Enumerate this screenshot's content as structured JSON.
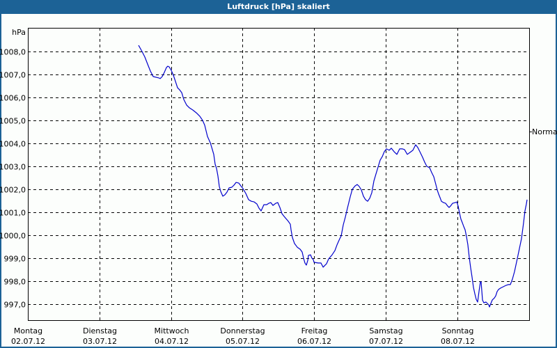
{
  "window": {
    "title": "Luftdruck [hPa] skaliert"
  },
  "chart_data": {
    "type": "line",
    "title": "Luftdruck [hPa] skaliert",
    "ylabel": "hPa",
    "xlabel": "",
    "ylim": [
      996.3,
      1009.0
    ],
    "y_ticks": [
      1008.0,
      1007.0,
      1006.0,
      1005.0,
      1004.0,
      1003.0,
      1002.0,
      1001.0,
      1000.0,
      999.0,
      998.0,
      997.0
    ],
    "y_tick_labels": [
      "1008,0",
      "1007,0",
      "1006,0",
      "1005,0",
      "1004,0",
      "1003,0",
      "1002,0",
      "1001,0",
      "1000,0",
      "999,0",
      "998,0",
      "997,0"
    ],
    "x_ticks": [
      {
        "day": "Montag",
        "date": "02.07.12"
      },
      {
        "day": "Dienstag",
        "date": "03.07.12"
      },
      {
        "day": "Mittwoch",
        "date": "04.07.12"
      },
      {
        "day": "Donnerstag",
        "date": "05.07.12"
      },
      {
        "day": "Freitag",
        "date": "06.07.12"
      },
      {
        "day": "Samstag",
        "date": "07.07.12"
      },
      {
        "day": "Sonntag",
        "date": "08.07.12"
      }
    ],
    "xlim_days": [
      0,
      7
    ],
    "grid": true,
    "reference_marker": {
      "label": "Normal",
      "value": 1004.5
    },
    "series": [
      {
        "name": "Luftdruck",
        "color": "#0000cc",
        "x_unit": "days since Montag 02.07.12 00:00",
        "points": [
          [
            1.547,
            1008.27
          ],
          [
            1.595,
            1008.0
          ],
          [
            1.634,
            1007.76
          ],
          [
            1.673,
            1007.45
          ],
          [
            1.712,
            1007.15
          ],
          [
            1.751,
            1006.91
          ],
          [
            1.829,
            1006.85
          ],
          [
            1.848,
            1006.82
          ],
          [
            1.877,
            1006.91
          ],
          [
            1.907,
            1007.09
          ],
          [
            1.936,
            1007.3
          ],
          [
            1.955,
            1007.36
          ],
          [
            1.975,
            1007.33
          ],
          [
            2.004,
            1007.18
          ],
          [
            2.033,
            1006.97
          ],
          [
            2.062,
            1006.7
          ],
          [
            2.091,
            1006.42
          ],
          [
            2.121,
            1006.33
          ],
          [
            2.15,
            1006.21
          ],
          [
            2.179,
            1005.91
          ],
          [
            2.218,
            1005.67
          ],
          [
            2.257,
            1005.55
          ],
          [
            2.305,
            1005.45
          ],
          [
            2.354,
            1005.33
          ],
          [
            2.403,
            1005.18
          ],
          [
            2.442,
            1005.0
          ],
          [
            2.471,
            1004.79
          ],
          [
            2.51,
            1004.3
          ],
          [
            2.549,
            1004.03
          ],
          [
            2.578,
            1003.73
          ],
          [
            2.597,
            1003.52
          ],
          [
            2.617,
            1003.09
          ],
          [
            2.636,
            1002.91
          ],
          [
            2.656,
            1002.58
          ],
          [
            2.675,
            1002.12
          ],
          [
            2.695,
            1001.91
          ],
          [
            2.724,
            1001.7
          ],
          [
            2.753,
            1001.76
          ],
          [
            2.782,
            1001.88
          ],
          [
            2.811,
            1002.06
          ],
          [
            2.85,
            1002.09
          ],
          [
            2.879,
            1002.18
          ],
          [
            2.909,
            1002.3
          ],
          [
            2.947,
            1002.27
          ],
          [
            2.977,
            1002.15
          ],
          [
            3.006,
            1002.03
          ],
          [
            3.045,
            1001.82
          ],
          [
            3.084,
            1001.55
          ],
          [
            3.123,
            1001.48
          ],
          [
            3.161,
            1001.45
          ],
          [
            3.2,
            1001.36
          ],
          [
            3.23,
            1001.18
          ],
          [
            3.259,
            1001.06
          ],
          [
            3.298,
            1001.33
          ],
          [
            3.337,
            1001.33
          ],
          [
            3.366,
            1001.39
          ],
          [
            3.395,
            1001.42
          ],
          [
            3.424,
            1001.3
          ],
          [
            3.463,
            1001.39
          ],
          [
            3.492,
            1001.42
          ],
          [
            3.521,
            1001.21
          ],
          [
            3.551,
            1000.94
          ],
          [
            3.58,
            1000.82
          ],
          [
            3.638,
            1000.61
          ],
          [
            3.667,
            1000.48
          ],
          [
            3.677,
            1000.24
          ],
          [
            3.696,
            999.91
          ],
          [
            3.726,
            999.64
          ],
          [
            3.765,
            999.48
          ],
          [
            3.804,
            999.39
          ],
          [
            3.833,
            999.27
          ],
          [
            3.852,
            999.0
          ],
          [
            3.872,
            998.79
          ],
          [
            3.891,
            998.7
          ],
          [
            3.911,
            998.91
          ],
          [
            3.92,
            999.12
          ],
          [
            3.949,
            999.15
          ],
          [
            3.969,
            999.0
          ],
          [
            3.988,
            998.94
          ],
          [
            3.998,
            998.82
          ],
          [
            4.056,
            998.79
          ],
          [
            4.095,
            998.79
          ],
          [
            4.125,
            998.61
          ],
          [
            4.144,
            998.67
          ],
          [
            4.173,
            998.76
          ],
          [
            4.202,
            998.97
          ],
          [
            4.251,
            999.15
          ],
          [
            4.29,
            999.33
          ],
          [
            4.319,
            999.58
          ],
          [
            4.358,
            999.85
          ],
          [
            4.377,
            999.97
          ],
          [
            4.407,
            1000.45
          ],
          [
            4.436,
            1000.79
          ],
          [
            4.465,
            1001.18
          ],
          [
            4.504,
            1001.67
          ],
          [
            4.533,
            1002.0
          ],
          [
            4.572,
            1002.15
          ],
          [
            4.601,
            1002.21
          ],
          [
            4.63,
            1002.12
          ],
          [
            4.66,
            1001.97
          ],
          [
            4.689,
            1001.7
          ],
          [
            4.718,
            1001.55
          ],
          [
            4.747,
            1001.48
          ],
          [
            4.776,
            1001.61
          ],
          [
            4.805,
            1001.85
          ],
          [
            4.835,
            1002.36
          ],
          [
            4.864,
            1002.67
          ],
          [
            4.893,
            1002.97
          ],
          [
            4.922,
            1003.27
          ],
          [
            4.951,
            1003.42
          ],
          [
            4.981,
            1003.64
          ],
          [
            5.01,
            1003.76
          ],
          [
            5.049,
            1003.7
          ],
          [
            5.078,
            1003.79
          ],
          [
            5.117,
            1003.64
          ],
          [
            5.156,
            1003.52
          ],
          [
            5.195,
            1003.76
          ],
          [
            5.233,
            1003.76
          ],
          [
            5.263,
            1003.73
          ],
          [
            5.302,
            1003.52
          ],
          [
            5.34,
            1003.61
          ],
          [
            5.379,
            1003.7
          ],
          [
            5.418,
            1003.94
          ],
          [
            5.447,
            1003.82
          ],
          [
            5.477,
            1003.64
          ],
          [
            5.516,
            1003.39
          ],
          [
            5.545,
            1003.18
          ],
          [
            5.574,
            1003.0
          ],
          [
            5.613,
            1002.94
          ],
          [
            5.642,
            1002.73
          ],
          [
            5.671,
            1002.55
          ],
          [
            5.7,
            1002.21
          ],
          [
            5.72,
            1001.97
          ],
          [
            5.739,
            1001.79
          ],
          [
            5.759,
            1001.64
          ],
          [
            5.778,
            1001.48
          ],
          [
            5.807,
            1001.42
          ],
          [
            5.837,
            1001.39
          ],
          [
            5.866,
            1001.27
          ],
          [
            5.885,
            1001.21
          ],
          [
            5.905,
            1001.27
          ],
          [
            5.934,
            1001.39
          ],
          [
            5.973,
            1001.42
          ],
          [
            5.992,
            1001.45
          ],
          [
            6.012,
            1001.27
          ],
          [
            6.031,
            1000.97
          ],
          [
            6.051,
            1000.7
          ],
          [
            6.07,
            1000.55
          ],
          [
            6.089,
            1000.39
          ],
          [
            6.109,
            1000.24
          ],
          [
            6.128,
            999.94
          ],
          [
            6.148,
            999.58
          ],
          [
            6.167,
            999.03
          ],
          [
            6.187,
            998.58
          ],
          [
            6.206,
            998.18
          ],
          [
            6.226,
            997.73
          ],
          [
            6.245,
            997.45
          ],
          [
            6.265,
            997.21
          ],
          [
            6.284,
            997.09
          ],
          [
            6.304,
            997.58
          ],
          [
            6.323,
            997.97
          ],
          [
            6.333,
            997.97
          ],
          [
            6.342,
            997.58
          ],
          [
            6.352,
            997.18
          ],
          [
            6.371,
            997.06
          ],
          [
            6.401,
            997.09
          ],
          [
            6.42,
            997.03
          ],
          [
            6.44,
            996.97
          ],
          [
            6.449,
            996.88
          ],
          [
            6.469,
            997.03
          ],
          [
            6.488,
            997.18
          ],
          [
            6.518,
            997.27
          ],
          [
            6.537,
            997.36
          ],
          [
            6.556,
            997.55
          ],
          [
            6.576,
            997.64
          ],
          [
            6.605,
            997.7
          ],
          [
            6.644,
            997.76
          ],
          [
            6.683,
            997.82
          ],
          [
            6.712,
            997.85
          ],
          [
            6.741,
            997.85
          ],
          [
            6.77,
            998.09
          ],
          [
            6.8,
            998.42
          ],
          [
            6.838,
            998.97
          ],
          [
            6.868,
            999.42
          ],
          [
            6.897,
            999.85
          ],
          [
            6.926,
            1000.55
          ],
          [
            6.946,
            1001.06
          ],
          [
            6.965,
            1001.36
          ],
          [
            6.975,
            1001.55
          ]
        ]
      }
    ]
  },
  "colors": {
    "titlebar": "#1c6296",
    "line": "#0000cc",
    "grid": "#000000",
    "background": "#fcfefc"
  }
}
